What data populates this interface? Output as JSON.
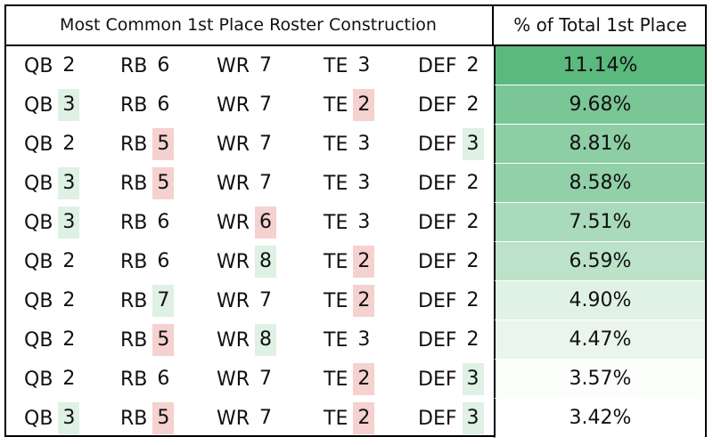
{
  "headers": {
    "left": "Most Common 1st Place Roster Construction",
    "right": "% of Total 1st Place"
  },
  "colors": {
    "increase_highlight": "#dff0e4",
    "decrease_highlight": "#f5d1cf",
    "pct_gradient_max": "#5cb97e",
    "pct_gradient_min": "#ffffff"
  },
  "chart_data": {
    "type": "table",
    "columns": [
      "QB",
      "RB",
      "WR",
      "TE",
      "DEF",
      "% of Total 1st Place"
    ],
    "baseline": {
      "QB": 2,
      "RB": 6,
      "WR": 7,
      "TE": 3,
      "DEF": 2
    },
    "rows": [
      {
        "QB": "2",
        "RB": "6",
        "WR": "7",
        "TE": "3",
        "DEF": "2",
        "pct": "11.14%",
        "pct_value": 11.14
      },
      {
        "QB": "3",
        "RB": "6",
        "WR": "7",
        "TE": "2",
        "DEF": "2",
        "pct": "9.68%",
        "pct_value": 9.68
      },
      {
        "QB": "2",
        "RB": "5",
        "WR": "7",
        "TE": "3",
        "DEF": "3",
        "pct": "8.81%",
        "pct_value": 8.81
      },
      {
        "QB": "3",
        "RB": "5",
        "WR": "7",
        "TE": "3",
        "DEF": "2",
        "pct": "8.58%",
        "pct_value": 8.58
      },
      {
        "QB": "3",
        "RB": "6",
        "WR": "6",
        "TE": "3",
        "DEF": "2",
        "pct": "7.51%",
        "pct_value": 7.51
      },
      {
        "QB": "2",
        "RB": "6",
        "WR": "8",
        "TE": "2",
        "DEF": "2",
        "pct": "6.59%",
        "pct_value": 6.59
      },
      {
        "QB": "2",
        "RB": "7",
        "WR": "7",
        "TE": "2",
        "DEF": "2",
        "pct": "4.90%",
        "pct_value": 4.9
      },
      {
        "QB": "2",
        "RB": "5",
        "WR": "8",
        "TE": "3",
        "DEF": "2",
        "pct": "4.47%",
        "pct_value": 4.47
      },
      {
        "QB": "2",
        "RB": "6",
        "WR": "7",
        "TE": "2",
        "DEF": "3",
        "pct": "3.57%",
        "pct_value": 3.57
      },
      {
        "QB": "3",
        "RB": "5",
        "WR": "7",
        "TE": "2",
        "DEF": "3",
        "pct": "3.42%",
        "pct_value": 3.42
      }
    ]
  }
}
